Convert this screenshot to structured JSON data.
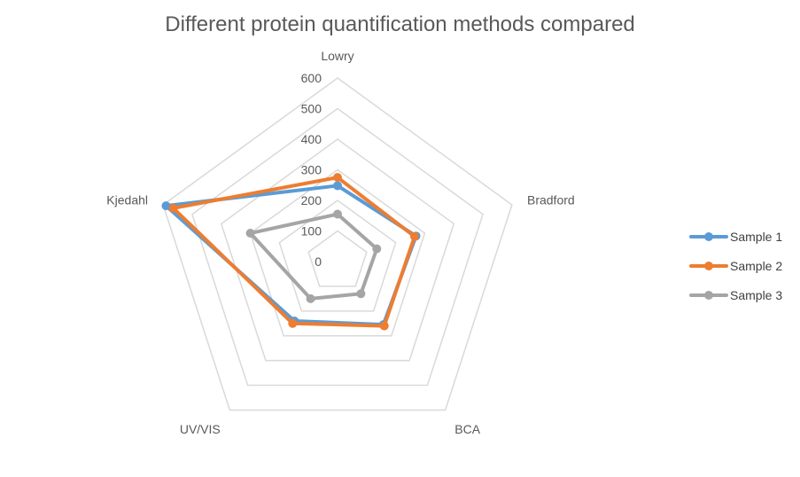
{
  "chart_data": {
    "type": "radar",
    "title": "Different protein quantification methods compared",
    "categories": [
      "Lowry",
      "Bradford",
      "BCA",
      "UV/VIS",
      "Kjedahl"
    ],
    "r_ticks": [
      "0",
      "100",
      "200",
      "300",
      "400",
      "500",
      "600"
    ],
    "rlim": [
      0,
      600
    ],
    "grid": true,
    "legend_position": "right",
    "series": [
      {
        "name": "Sample 1",
        "color": "#5B9BD5",
        "values": [
          248,
          270,
          255,
          240,
          590
        ]
      },
      {
        "name": "Sample 2",
        "color": "#ED7D31",
        "values": [
          275,
          265,
          260,
          250,
          565
        ]
      },
      {
        "name": "Sample 3",
        "color": "#A5A5A5",
        "values": [
          155,
          135,
          130,
          150,
          300
        ]
      }
    ]
  }
}
